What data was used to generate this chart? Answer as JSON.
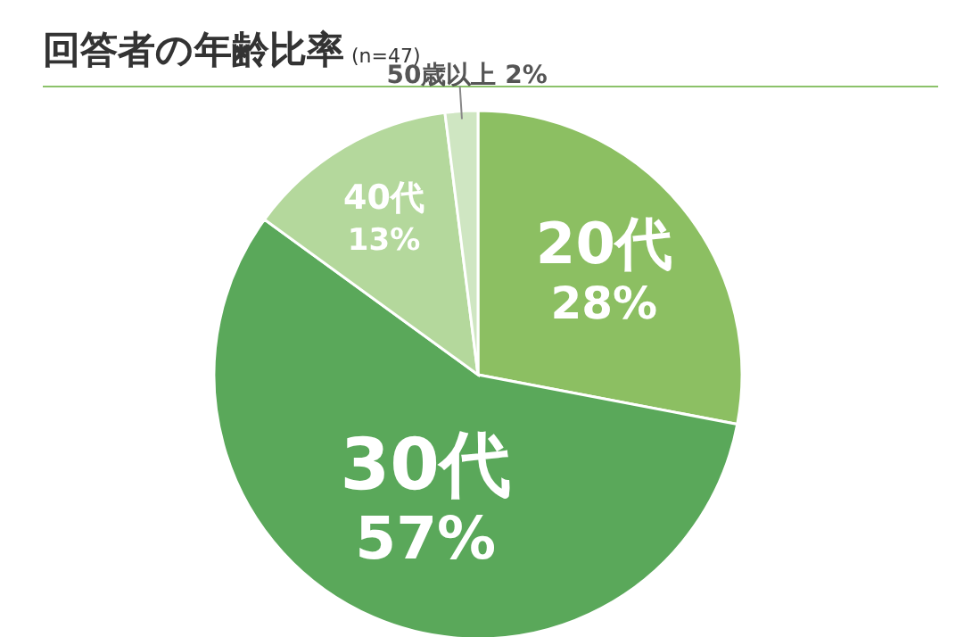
{
  "chart_data": {
    "type": "pie",
    "title": "回答者の年齢比率",
    "subtitle": "(n=47)",
    "categories": [
      "20代",
      "30代",
      "40代",
      "50歳以上"
    ],
    "values": [
      28,
      57,
      13,
      2
    ],
    "colors": [
      "#8cbf62",
      "#5aa85a",
      "#b4d89c",
      "#cfe6c2"
    ],
    "value_labels": [
      "28%",
      "57%",
      "13%",
      "2%"
    ]
  }
}
